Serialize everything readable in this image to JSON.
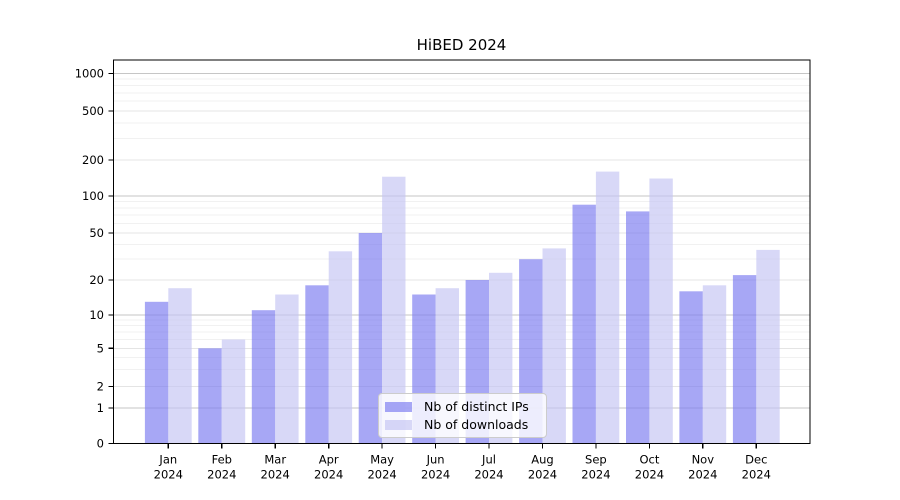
{
  "chart_data": {
    "type": "bar",
    "title": "HiBED 2024",
    "categories": [
      "Jan",
      "Feb",
      "Mar",
      "Apr",
      "May",
      "Jun",
      "Jul",
      "Aug",
      "Sep",
      "Oct",
      "Nov",
      "Dec"
    ],
    "category_year": "2024",
    "series": [
      {
        "name": "Nb of distinct IPs",
        "color": "rgba(122,122,240,0.66)",
        "values": [
          13,
          5,
          11,
          18,
          50,
          15,
          20,
          30,
          85,
          75,
          16,
          22
        ]
      },
      {
        "name": "Nb of downloads",
        "color": "rgba(196,196,243,0.66)",
        "values": [
          17,
          6,
          15,
          35,
          145,
          17,
          23,
          37,
          160,
          140,
          18,
          36
        ]
      }
    ],
    "xlabel": "",
    "ylabel": "",
    "yscale": "symlog",
    "y_ticks": [
      0,
      1,
      2,
      5,
      10,
      20,
      50,
      100,
      200,
      500,
      1000
    ],
    "ylim": [
      0,
      1300
    ],
    "grid": "horizontal",
    "legend_position": "lower center"
  },
  "style": {
    "grid_major_color": "#c6c6c6",
    "grid_mid_color": "#e4e4e4",
    "grid_minor_color": "#f1f1f1",
    "spine_color": "#000000"
  }
}
